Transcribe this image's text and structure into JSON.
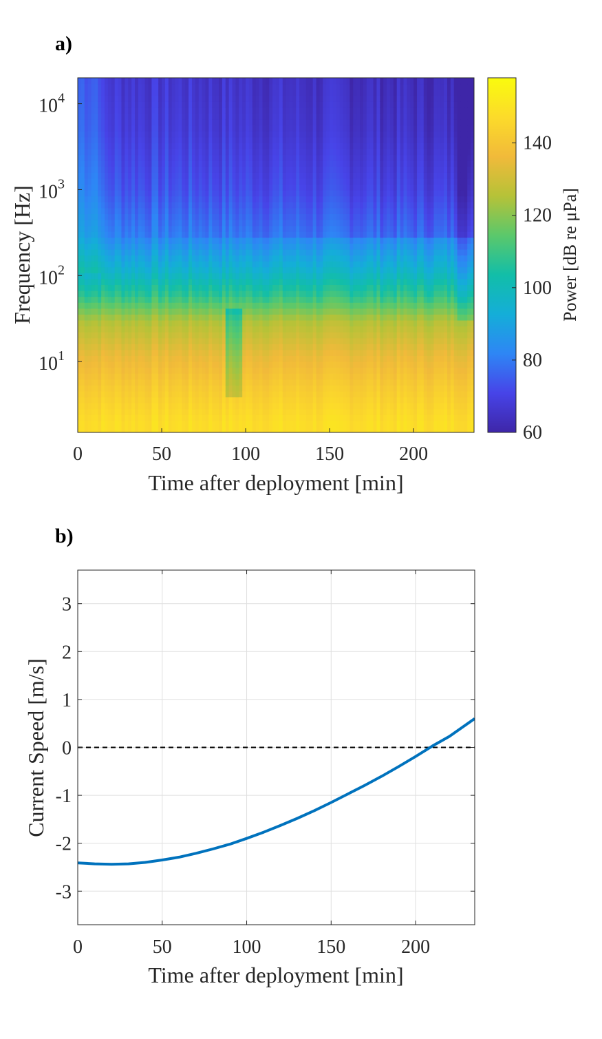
{
  "panel_a": {
    "label": "a)",
    "chart_data": {
      "type": "heatmap",
      "title": "",
      "xlabel": "Time after deployment [min]",
      "ylabel": "Frequency [Hz]",
      "xlim": [
        0,
        236
      ],
      "xticks": [
        0,
        50,
        100,
        150,
        200
      ],
      "yscale": "log",
      "ylim": [
        1.5,
        20000
      ],
      "yticks": [
        {
          "value": 10,
          "base": "10",
          "exp": "1"
        },
        {
          "value": 100,
          "base": "10",
          "exp": "2"
        },
        {
          "value": 1000,
          "base": "10",
          "exp": "3"
        },
        {
          "value": 10000,
          "base": "10",
          "exp": "4"
        }
      ],
      "colorbar": {
        "label": "Power [dB re μPa]",
        "range": [
          60,
          158
        ],
        "ticks": [
          60,
          80,
          100,
          120,
          140
        ],
        "colormap": [
          "#3e26a8",
          "#4744e8",
          "#2e86f5",
          "#14aed8",
          "#12bea8",
          "#5bc86b",
          "#b6c238",
          "#f1ba3a",
          "#fcdb2a",
          "#f9fb0e"
        ]
      },
      "spectral_profile": [
        {
          "freq_hz": 2,
          "power_db": 148
        },
        {
          "freq_hz": 5,
          "power_db": 142
        },
        {
          "freq_hz": 12,
          "power_db": 135
        },
        {
          "freq_hz": 30,
          "power_db": 125
        },
        {
          "freq_hz": 60,
          "power_db": 108
        },
        {
          "freq_hz": 120,
          "power_db": 95
        },
        {
          "freq_hz": 300,
          "power_db": 82
        },
        {
          "freq_hz": 1000,
          "power_db": 75
        },
        {
          "freq_hz": 5000,
          "power_db": 70
        },
        {
          "freq_hz": 20000,
          "power_db": 68
        }
      ]
    }
  },
  "panel_b": {
    "label": "b)",
    "chart_data": {
      "type": "line",
      "title": "",
      "xlabel": "Time after deployment [min]",
      "ylabel": "Current Speed [m/s]",
      "xlim": [
        0,
        235
      ],
      "ylim": [
        -3.7,
        3.7
      ],
      "xticks": [
        0,
        50,
        100,
        150,
        200
      ],
      "yticks": [
        -3,
        -2,
        -1,
        0,
        1,
        2,
        3
      ],
      "grid": true,
      "reference_line": {
        "y": 0,
        "style": "dashed",
        "color": "#000000"
      },
      "series": [
        {
          "color": "#0072bd",
          "x": [
            0,
            10,
            20,
            30,
            40,
            50,
            60,
            70,
            80,
            90,
            100,
            110,
            120,
            130,
            140,
            150,
            160,
            170,
            180,
            190,
            200,
            210,
            220,
            235
          ],
          "y": [
            -2.41,
            -2.43,
            -2.44,
            -2.43,
            -2.4,
            -2.35,
            -2.29,
            -2.21,
            -2.12,
            -2.02,
            -1.9,
            -1.77,
            -1.63,
            -1.48,
            -1.32,
            -1.15,
            -0.97,
            -0.79,
            -0.6,
            -0.4,
            -0.19,
            0.03,
            0.23,
            0.6
          ]
        }
      ]
    }
  }
}
